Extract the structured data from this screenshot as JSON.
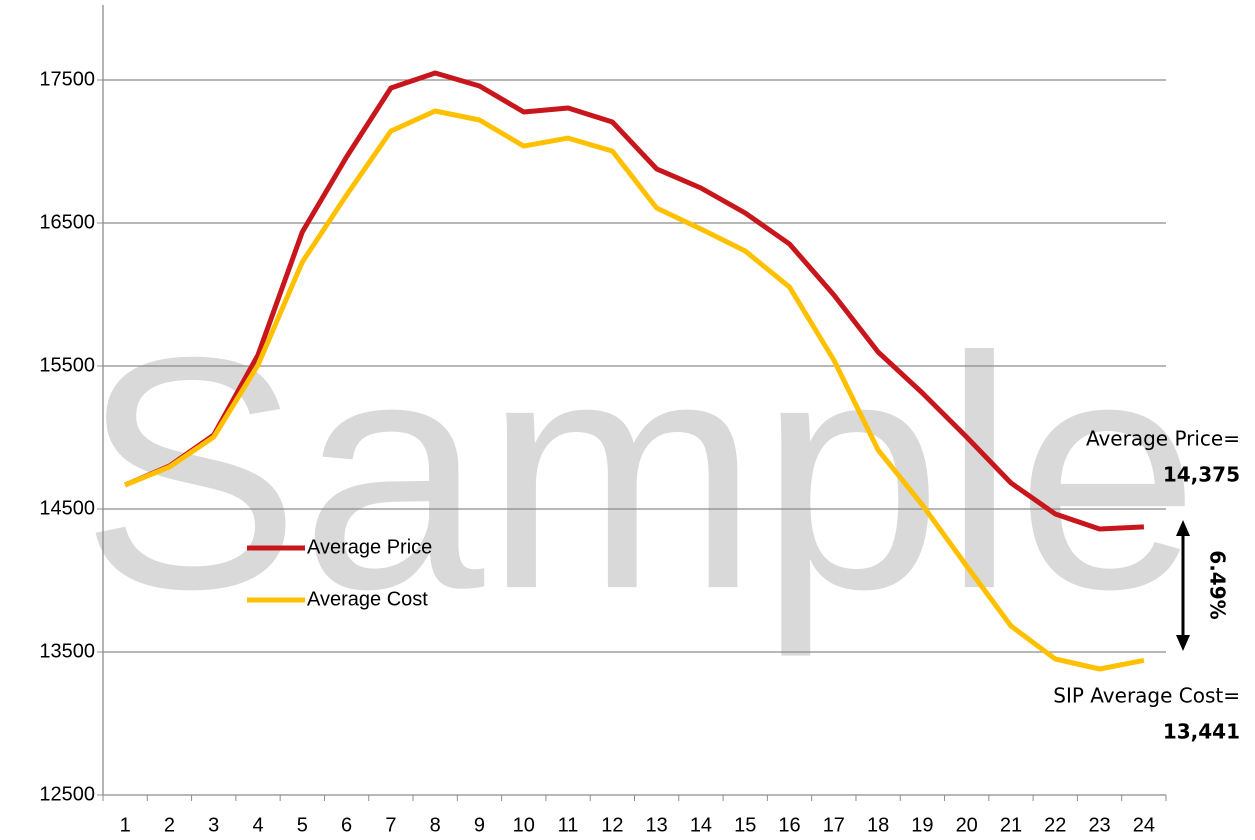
{
  "chart_data": {
    "type": "line",
    "watermark": "Sample",
    "categories": [
      "1",
      "2",
      "3",
      "4",
      "5",
      "6",
      "7",
      "8",
      "9",
      "10",
      "11",
      "12",
      "13",
      "14",
      "15",
      "16",
      "17",
      "18",
      "19",
      "20",
      "21",
      "22",
      "23",
      "24"
    ],
    "series": [
      {
        "name": "Average Price",
        "color": "#c8161d",
        "values": [
          14668,
          14800,
          15017,
          15577,
          16437,
          16962,
          17444,
          17549,
          17458,
          17276,
          17304,
          17206,
          16878,
          16745,
          16570,
          16353,
          15997,
          15598,
          15311,
          15003,
          14682,
          14465,
          14360,
          14375
        ]
      },
      {
        "name": "Average Cost",
        "color": "#ffc000",
        "values": [
          14668,
          14794,
          15003,
          15507,
          16227,
          16696,
          17143,
          17283,
          17220,
          17038,
          17094,
          17003,
          16605,
          16458,
          16304,
          16052,
          15542,
          14913,
          14528,
          14101,
          13682,
          13451,
          13381,
          13441
        ]
      }
    ],
    "ylim": [
      12500,
      18000
    ],
    "yticks": [
      12500,
      13500,
      14500,
      15500,
      16500,
      17500
    ],
    "grid": true,
    "legend": "center-left",
    "annotations": {
      "price_label": "Average Price=",
      "price_value": "14,375",
      "cost_label": "SIP Average Cost=",
      "cost_value": "13,441",
      "difference": "6.49%"
    }
  }
}
